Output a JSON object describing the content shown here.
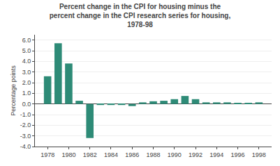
{
  "chart_data": {
    "type": "bar",
    "title": "Percent change in the CPI for housing minus the\npercent change in the CPI research series for housing,\n1978-98",
    "ylabel": "Percentage points",
    "x": [
      1978,
      1979,
      1980,
      1981,
      1982,
      1983,
      1984,
      1985,
      1986,
      1987,
      1988,
      1989,
      1990,
      1991,
      1992,
      1993,
      1994,
      1995,
      1996,
      1997,
      1998
    ],
    "values": [
      2.6,
      5.7,
      3.8,
      0.3,
      -3.2,
      -0.1,
      -0.1,
      -0.1,
      -0.2,
      0.15,
      0.25,
      0.3,
      0.45,
      0.75,
      0.45,
      0.15,
      0.15,
      0.15,
      0.1,
      0.1,
      0.15
    ],
    "color": "#2e8b77",
    "xlim": [
      1976.8,
      1999.2
    ],
    "xticks": [
      1978,
      1980,
      1982,
      1984,
      1986,
      1988,
      1990,
      1992,
      1994,
      1996,
      1998
    ],
    "ylim": [
      -4.0,
      6.5
    ],
    "yticks": [
      {
        "value": -4.0,
        "label": "-4.0"
      },
      {
        "value": -3.0,
        "label": "-3.0"
      },
      {
        "value": -2.0,
        "label": "-2.0"
      },
      {
        "value": -1.0,
        "label": "-1.0"
      },
      {
        "value": 0.0,
        "label": "0.0"
      },
      {
        "value": 1.0,
        "label": "1.0"
      },
      {
        "value": 2.0,
        "label": "2.0"
      },
      {
        "value": 3.0,
        "label": "3.0"
      },
      {
        "value": 4.0,
        "label": "4.0"
      },
      {
        "value": 5.0,
        "label": "5.0"
      },
      {
        "value": 6.0,
        "label": "6.0"
      }
    ],
    "grid": true
  }
}
